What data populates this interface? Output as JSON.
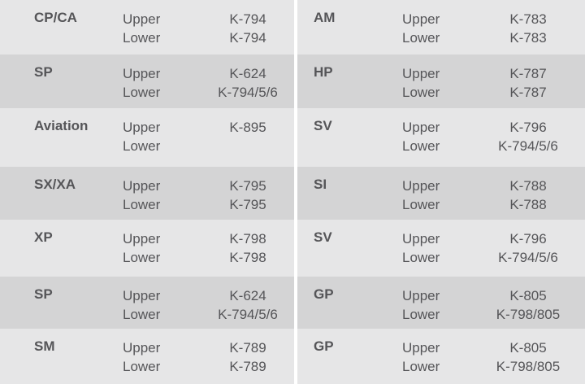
{
  "colors": {
    "light_band": "#e6e6e7",
    "dark_band": "#d4d4d5",
    "text": "#555558",
    "divider": "#ffffff"
  },
  "left": [
    {
      "name": "CP/CA",
      "upper_label": "Upper",
      "lower_label": "Lower",
      "upper": "K-794",
      "lower": "K-794"
    },
    {
      "name": "SP",
      "upper_label": "Upper",
      "lower_label": "Lower",
      "upper": "K-624",
      "lower": "K-794/5/6"
    },
    {
      "name": "Aviation",
      "upper_label": "Upper",
      "lower_label": "Lower",
      "upper": "K-895",
      "lower": ""
    },
    {
      "name": "SX/XA",
      "upper_label": "Upper",
      "lower_label": "Lower",
      "upper": "K-795",
      "lower": "K-795"
    },
    {
      "name": "XP",
      "upper_label": "Upper",
      "lower_label": "Lower",
      "upper": "K-798",
      "lower": "K-798"
    },
    {
      "name": "SP",
      "upper_label": "Upper",
      "lower_label": "Lower",
      "upper": "K-624",
      "lower": "K-794/5/6"
    },
    {
      "name": "SM",
      "upper_label": "Upper",
      "lower_label": "Lower",
      "upper": "K-789",
      "lower": "K-789"
    }
  ],
  "right": [
    {
      "name": "AM",
      "upper_label": "Upper",
      "lower_label": "Lower",
      "upper": "K-783",
      "lower": "K-783"
    },
    {
      "name": "HP",
      "upper_label": "Upper",
      "lower_label": "Lower",
      "upper": "K-787",
      "lower": "K-787"
    },
    {
      "name": "SV",
      "upper_label": "Upper",
      "lower_label": "Lower",
      "upper": "K-796",
      "lower": "K-794/5/6"
    },
    {
      "name": "SI",
      "upper_label": "Upper",
      "lower_label": "Lower",
      "upper": "K-788",
      "lower": "K-788"
    },
    {
      "name": "SV",
      "upper_label": "Upper",
      "lower_label": "Lower",
      "upper": "K-796",
      "lower": "K-794/5/6"
    },
    {
      "name": "GP",
      "upper_label": "Upper",
      "lower_label": "Lower",
      "upper": "K-805",
      "lower": "K-798/805"
    },
    {
      "name": "GP",
      "upper_label": "Upper",
      "lower_label": "Lower",
      "upper": "K-805",
      "lower": "K-798/805"
    }
  ]
}
